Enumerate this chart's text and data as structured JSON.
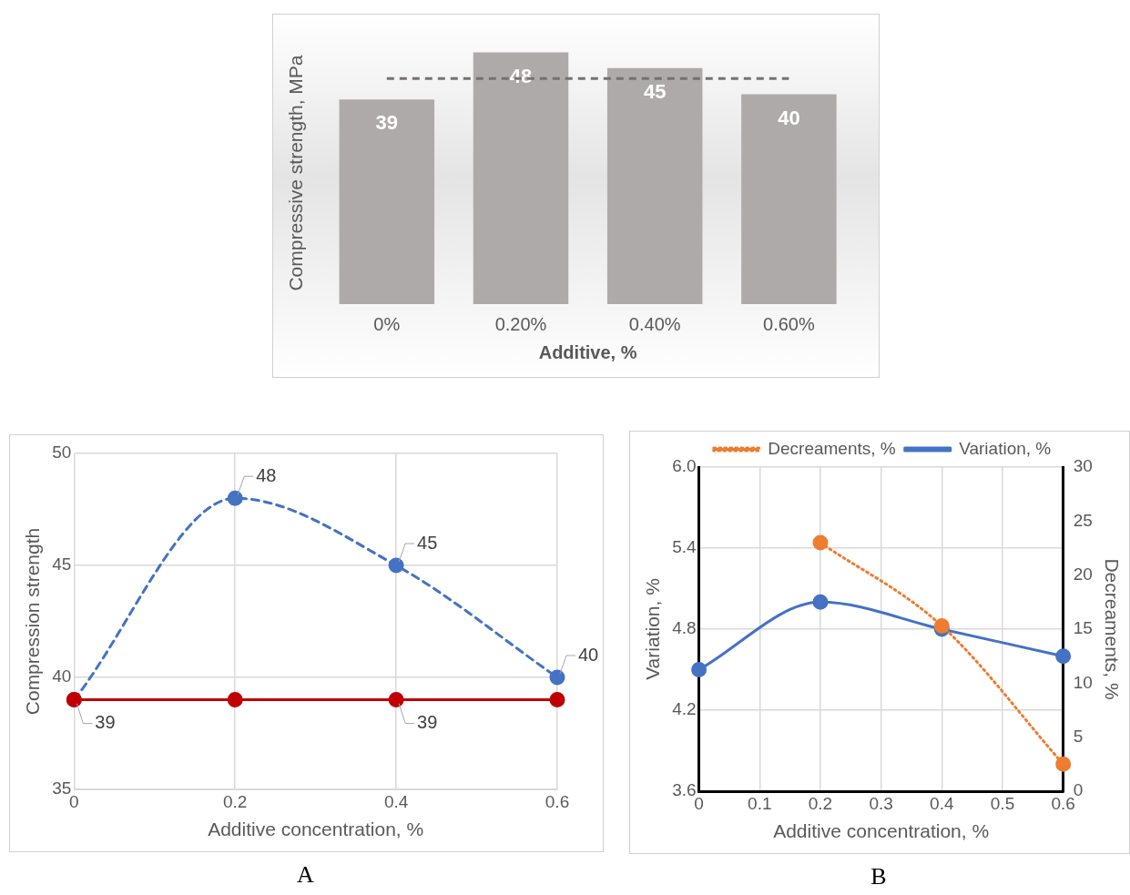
{
  "chart_data": [
    {
      "type": "bar",
      "xlabel": "Additive, %",
      "ylabel": "Compressive strength, MPa",
      "categories": [
        "0%",
        "0.20%",
        "0.40%",
        "0.60%"
      ],
      "values": [
        39,
        48,
        45,
        40
      ],
      "color": "#aeaaaa",
      "data_labels": true,
      "tick_labels": "x",
      "grid": false,
      "legend": false,
      "ref_lines": [
        {
          "axis": "y",
          "value": 43,
          "color": "#767171",
          "line_style": "dashed"
        }
      ]
    },
    {
      "type": "line",
      "xlabel": "Additive concentration, %",
      "ylabel": "Compression strength",
      "x": [
        0,
        0.2,
        0.4,
        0.6
      ],
      "xlim": [
        0,
        0.6
      ],
      "xticks": [
        0,
        0.2,
        0.4,
        0.6
      ],
      "ylim": [
        35,
        50
      ],
      "yticks": [
        35,
        40,
        45,
        50
      ],
      "grid": true,
      "legend": false,
      "marker": "circle",
      "series": [
        {
          "color": "#4472c4",
          "values": [
            39,
            48,
            45,
            40
          ],
          "line_style": "dashed",
          "value_labels": [
            null,
            "48",
            "45",
            "40"
          ]
        },
        {
          "color": "#c00000",
          "values": [
            39,
            39,
            39,
            39
          ],
          "line_style": "solid",
          "value_labels": [
            "39",
            null,
            "39",
            null
          ]
        }
      ],
      "annotations": [
        "A"
      ]
    },
    {
      "type": "line",
      "xlabel": "Additive concentration, %",
      "ylabel": "Variation, %",
      "y2label": "Decreaments, %",
      "x": [
        0,
        0.2,
        0.4,
        0.6
      ],
      "xlim": [
        0,
        0.6
      ],
      "xticks": [
        0,
        0.1,
        0.2,
        0.3,
        0.4,
        0.5,
        0.6
      ],
      "ylim": [
        3.6,
        6.0
      ],
      "yticks": [
        {
          "value": 3.6,
          "label": "3.6"
        },
        {
          "value": 4.2,
          "label": "4.2"
        },
        {
          "value": 4.8,
          "label": "4.8"
        },
        {
          "value": 5.4,
          "label": "5.4"
        },
        {
          "value": 6.0,
          "label": "6.0"
        }
      ],
      "y2lim": [
        0,
        30
      ],
      "y2ticks": [
        0,
        5,
        10,
        15,
        20,
        25,
        30
      ],
      "grid": true,
      "legend": "top",
      "marker": "circle",
      "series": [
        {
          "name": "Variation, %",
          "color": "#4472c4",
          "values": [
            4.5,
            5.0,
            4.8,
            4.6
          ],
          "line_style": "solid"
        },
        {
          "name": "Decreaments, %",
          "color": "#ed7d31",
          "x": [
            0.2,
            0.4,
            0.6
          ],
          "values": [
            23.0,
            15.3,
            2.5
          ],
          "axis": "y2",
          "line_style": "dotted"
        }
      ],
      "annotations": [
        "B"
      ]
    }
  ]
}
